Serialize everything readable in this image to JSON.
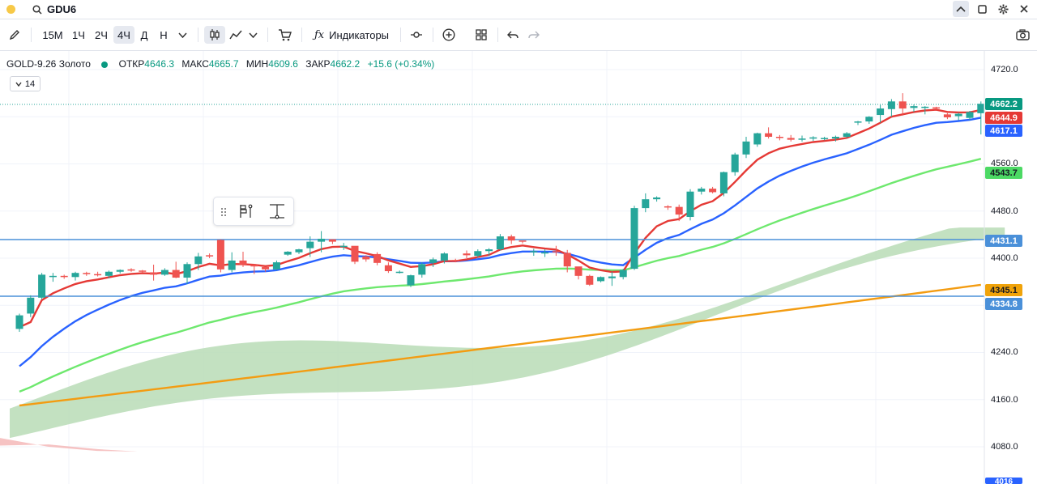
{
  "topbar": {
    "symbol": "GDU6",
    "icons": [
      "search-icon",
      "chevron-up-icon",
      "maximize-icon",
      "settings-icon",
      "close-icon"
    ]
  },
  "toolbar": {
    "pencil_icon": "pencil-icon",
    "intervals": [
      "15М",
      "1Ч",
      "2Ч",
      "4Ч",
      "Д",
      "Н"
    ],
    "active_interval": "4Ч",
    "indicators_label": "Индикаторы"
  },
  "legend": {
    "instrument": "GOLD-9.26 Золото",
    "open_label": "ОТКР",
    "open_value": "4646.3",
    "high_label": "МАКС",
    "high_value": "4665.7",
    "low_label": "МИН",
    "low_value": "4609.6",
    "close_label": "ЗАКР",
    "close_value": "4662.2",
    "change": "+15.6 (+0.34%)"
  },
  "period_selector": {
    "value": "14"
  },
  "price_axis": {
    "ticks": [
      "4720.0",
      "4560.0",
      "4480.0",
      "4400.0",
      "4240.0",
      "4160.0",
      "4080.0"
    ],
    "tags": [
      {
        "value": "4662.2",
        "color": "#089981"
      },
      {
        "value": "4644.9",
        "color": "#e53935"
      },
      {
        "value": "4617.1",
        "color": "#2962ff"
      },
      {
        "value": "4543.7",
        "color": "#4cd964"
      },
      {
        "value": "4431.1",
        "color": "#4a90d9"
      },
      {
        "value": "4345.1",
        "color": "#f0a30a"
      },
      {
        "value": "4334.8",
        "color": "#4a90d9"
      }
    ],
    "bottom_partial": "4016"
  },
  "chart_data": {
    "type": "candlestick",
    "price_range": [
      4040,
      4760
    ],
    "colors": {
      "up": "#26a69a",
      "down": "#ef5350",
      "ema_fast": "#e53935",
      "ema_mid": "#2962ff",
      "ema_slow": "#6ee86e",
      "ema_long": "#f39c12",
      "cloud": "#b9dcb6"
    },
    "horizontal_lines": [
      4431.1,
      4334.8
    ],
    "candles": [
      [
        4280,
        4306,
        4275,
        4303
      ],
      [
        4306,
        4337,
        4300,
        4333
      ],
      [
        4333,
        4375,
        4330,
        4372
      ],
      [
        4368,
        4375,
        4360,
        4370
      ],
      [
        4370,
        4372,
        4365,
        4369
      ],
      [
        4368,
        4377,
        4362,
        4375
      ],
      [
        4375,
        4377,
        4370,
        4373
      ],
      [
        4373,
        4377,
        4369,
        4371
      ],
      [
        4370,
        4379,
        4366,
        4377
      ],
      [
        4377,
        4381,
        4374,
        4380
      ],
      [
        4381,
        4383,
        4377,
        4379
      ],
      [
        4379,
        4380,
        4375,
        4377
      ],
      [
        4376,
        4389,
        4362,
        4372
      ],
      [
        4372,
        4383,
        4370,
        4380
      ],
      [
        4380,
        4394,
        4366,
        4367
      ],
      [
        4367,
        4393,
        4356,
        4390
      ],
      [
        4390,
        4409,
        4380,
        4403
      ],
      [
        4405,
        4408,
        4400,
        4404
      ],
      [
        4431,
        4432,
        4376,
        4381
      ],
      [
        4380,
        4410,
        4376,
        4396
      ],
      [
        4396,
        4411,
        4385,
        4389
      ],
      [
        4389,
        4390,
        4373,
        4386
      ],
      [
        4385,
        4384,
        4377,
        4381
      ],
      [
        4381,
        4396,
        4379,
        4393
      ],
      [
        4406,
        4412,
        4404,
        4411
      ],
      [
        4410,
        4416,
        4407,
        4415
      ],
      [
        4417,
        4437,
        4402,
        4428
      ],
      [
        4428,
        4446,
        4410,
        4433
      ],
      [
        4432,
        4432,
        4424,
        4428
      ],
      [
        4420,
        4426,
        4414,
        4421
      ],
      [
        4421,
        4420,
        4390,
        4394
      ],
      [
        4403,
        4405,
        4394,
        4398
      ],
      [
        4407,
        4410,
        4388,
        4392
      ],
      [
        4388,
        4393,
        4375,
        4378
      ],
      [
        4377,
        4379,
        4374,
        4377
      ],
      [
        4354,
        4372,
        4351,
        4371
      ],
      [
        4372,
        4393,
        4367,
        4390
      ],
      [
        4392,
        4401,
        4385,
        4398
      ],
      [
        4396,
        4410,
        4391,
        4408
      ],
      [
        4397,
        4399,
        4393,
        4395
      ],
      [
        4408,
        4413,
        4400,
        4405
      ],
      [
        4404,
        4415,
        4401,
        4412
      ],
      [
        4412,
        4417,
        4404,
        4415
      ],
      [
        4415,
        4441,
        4413,
        4437
      ],
      [
        4437,
        4440,
        4424,
        4430
      ],
      [
        4430,
        4429,
        4425,
        4428
      ],
      [
        4411,
        4416,
        4404,
        4412
      ],
      [
        4408,
        4415,
        4402,
        4410
      ],
      [
        4412,
        4421,
        4404,
        4410
      ],
      [
        4409,
        4414,
        4376,
        4386
      ],
      [
        4386,
        4385,
        4364,
        4370
      ],
      [
        4370,
        4372,
        4353,
        4355
      ],
      [
        4361,
        4369,
        4359,
        4368
      ],
      [
        4366,
        4377,
        4353,
        4369
      ],
      [
        4368,
        4382,
        4364,
        4380
      ],
      [
        4382,
        4489,
        4380,
        4485
      ],
      [
        4485,
        4510,
        4478,
        4500
      ],
      [
        4500,
        4505,
        4496,
        4503
      ],
      [
        4488,
        4490,
        4482,
        4486
      ],
      [
        4487,
        4491,
        4463,
        4474
      ],
      [
        4470,
        4517,
        4464,
        4513
      ],
      [
        4513,
        4521,
        4508,
        4518
      ],
      [
        4518,
        4521,
        4510,
        4512
      ],
      [
        4510,
        4547,
        4505,
        4546
      ],
      [
        4546,
        4579,
        4540,
        4576
      ],
      [
        4576,
        4606,
        4570,
        4598
      ],
      [
        4593,
        4613,
        4589,
        4612
      ],
      [
        4612,
        4622,
        4603,
        4606
      ],
      [
        4606,
        4609,
        4600,
        4605
      ],
      [
        4604,
        4609,
        4598,
        4601
      ],
      [
        4602,
        4608,
        4598,
        4603
      ],
      [
        4603,
        4607,
        4599,
        4605
      ],
      [
        4604,
        4606,
        4600,
        4604
      ],
      [
        4603,
        4608,
        4598,
        4606
      ],
      [
        4606,
        4614,
        4604,
        4612
      ],
      [
        4630,
        4633,
        4626,
        4632
      ],
      [
        4632,
        4641,
        4628,
        4640
      ],
      [
        4643,
        4660,
        4630,
        4654
      ],
      [
        4653,
        4670,
        4640,
        4666
      ],
      [
        4666,
        4680,
        4642,
        4654
      ],
      [
        4655,
        4661,
        4648,
        4658
      ],
      [
        4655,
        4658,
        4644,
        4657
      ],
      [
        4656,
        4657,
        4652,
        4655
      ],
      [
        4644,
        4646,
        4636,
        4639
      ],
      [
        4641,
        4647,
        4634,
        4645
      ],
      [
        4638,
        4650,
        4634,
        4648
      ],
      [
        4646,
        4666,
        4610,
        4662
      ]
    ]
  }
}
